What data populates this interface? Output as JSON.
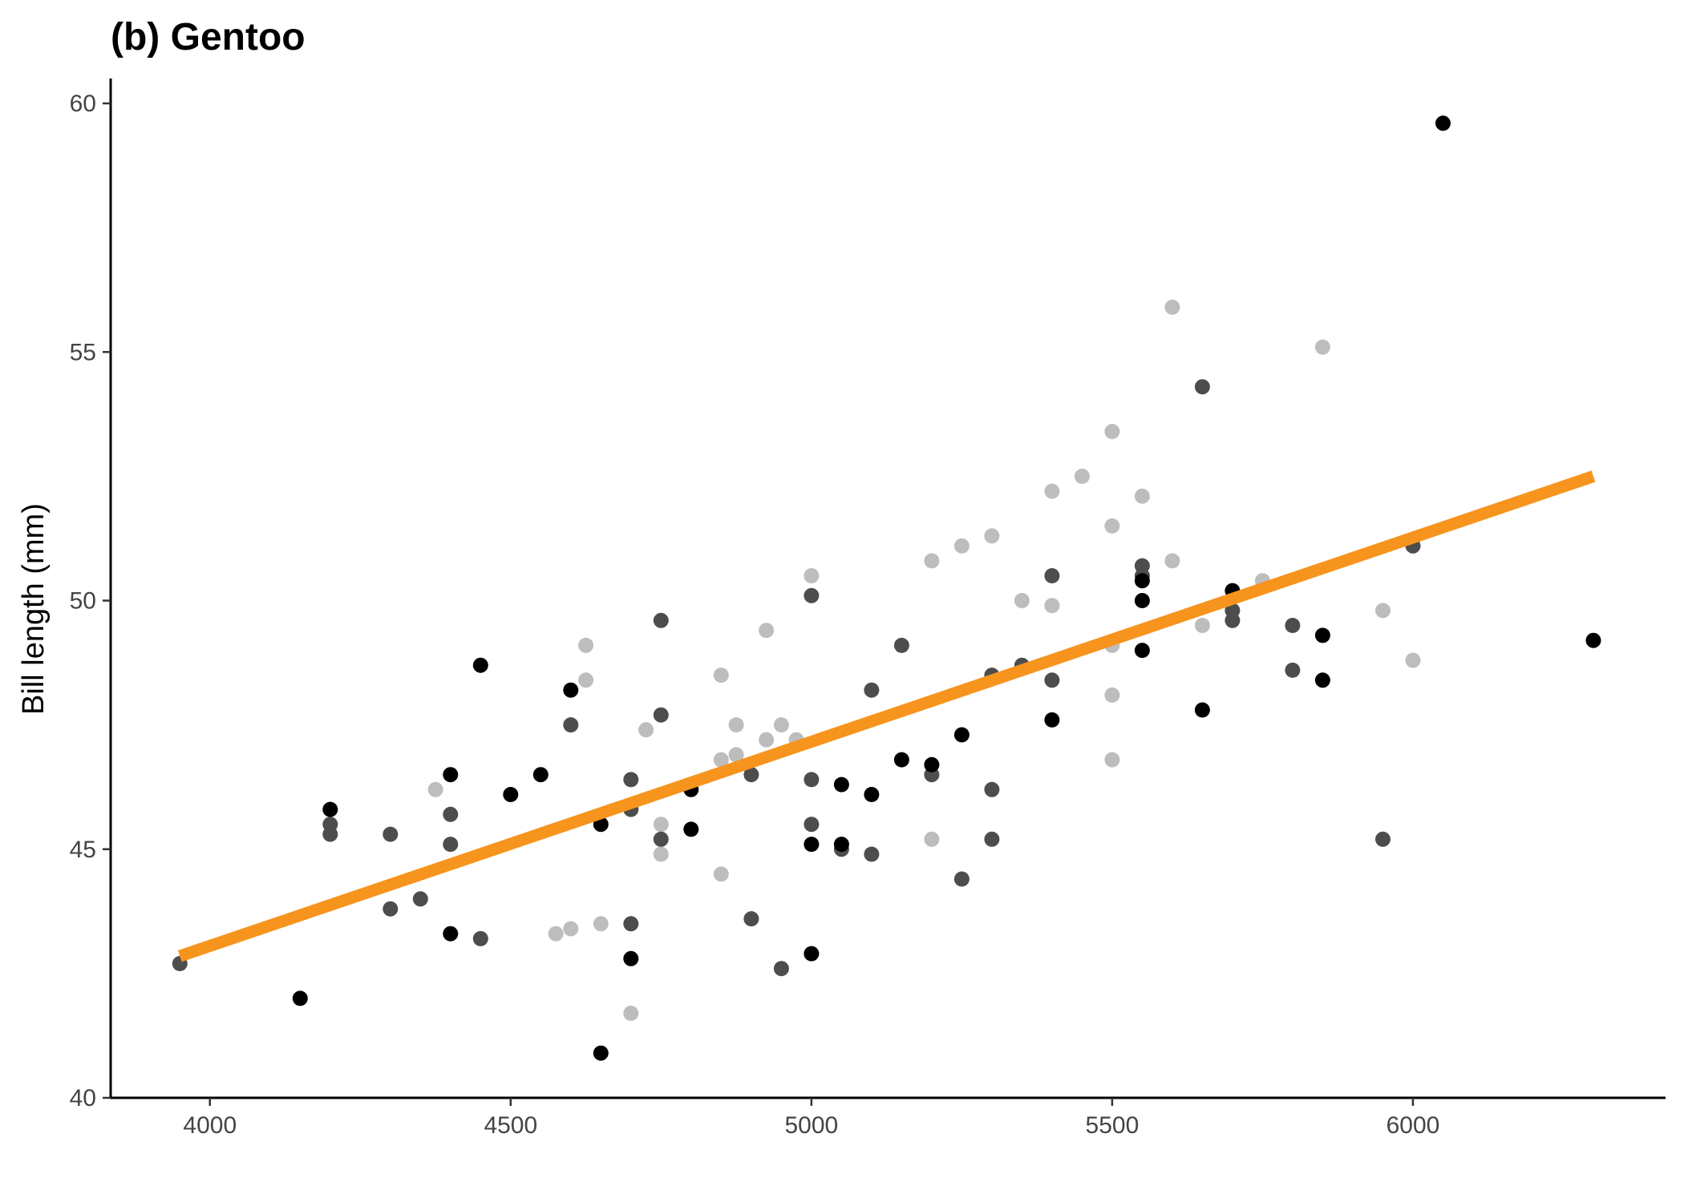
{
  "chart_data": {
    "type": "scatter",
    "title": "(b) Gentoo",
    "xlabel": "",
    "ylabel": "Bill length (mm)",
    "xlim": [
      3835,
      6420
    ],
    "ylim": [
      40,
      60.5
    ],
    "x_ticks": [
      4000,
      4500,
      5000,
      5500,
      6000
    ],
    "y_ticks": [
      40,
      45,
      50,
      55,
      60
    ],
    "x_tick_labels": [
      "4000",
      "4500",
      "5000",
      "5500",
      "6000"
    ],
    "y_tick_labels": [
      "40",
      "45",
      "50",
      "55",
      "60"
    ],
    "grid": false,
    "legend": "none",
    "colors": {
      "black": "#000000",
      "dark": "#4d4d4d",
      "light": "#bdbdbd",
      "fit": "#f7941d"
    },
    "fit_line": {
      "x": [
        3950,
        6300
      ],
      "y": [
        42.85,
        52.5
      ]
    },
    "series": [
      {
        "color": "light",
        "points": [
          [
            4375,
            46.2
          ],
          [
            4575,
            43.3
          ],
          [
            4600,
            43.4
          ],
          [
            4625,
            49.1
          ],
          [
            4625,
            48.4
          ],
          [
            4650,
            43.5
          ],
          [
            4700,
            41.7
          ],
          [
            4725,
            47.4
          ],
          [
            4750,
            45.5
          ],
          [
            4750,
            44.9
          ],
          [
            4850,
            48.5
          ],
          [
            4850,
            46.8
          ],
          [
            4850,
            44.5
          ],
          [
            4875,
            47.5
          ],
          [
            4875,
            46.9
          ],
          [
            4925,
            49.4
          ],
          [
            4925,
            47.2
          ],
          [
            4950,
            47.5
          ],
          [
            4975,
            47.2
          ],
          [
            5000,
            50.5
          ],
          [
            5200,
            50.8
          ],
          [
            5200,
            45.2
          ],
          [
            5250,
            51.1
          ],
          [
            5300,
            51.3
          ],
          [
            5350,
            50.0
          ],
          [
            5400,
            52.2
          ],
          [
            5400,
            49.9
          ],
          [
            5450,
            52.5
          ],
          [
            5500,
            53.4
          ],
          [
            5500,
            51.5
          ],
          [
            5500,
            49.1
          ],
          [
            5500,
            48.1
          ],
          [
            5500,
            46.8
          ],
          [
            5550,
            52.1
          ],
          [
            5600,
            55.9
          ],
          [
            5600,
            50.8
          ],
          [
            5650,
            49.5
          ],
          [
            5750,
            50.4
          ],
          [
            5850,
            55.1
          ],
          [
            5950,
            49.8
          ],
          [
            6000,
            48.8
          ]
        ]
      },
      {
        "color": "dark",
        "points": [
          [
            3950,
            42.7
          ],
          [
            4200,
            45.5
          ],
          [
            4200,
            45.3
          ],
          [
            4300,
            45.3
          ],
          [
            4300,
            43.8
          ],
          [
            4350,
            44.0
          ],
          [
            4400,
            45.7
          ],
          [
            4400,
            45.1
          ],
          [
            4450,
            43.2
          ],
          [
            4600,
            47.5
          ],
          [
            4700,
            46.4
          ],
          [
            4700,
            45.8
          ],
          [
            4700,
            43.5
          ],
          [
            4750,
            49.6
          ],
          [
            4750,
            47.7
          ],
          [
            4750,
            45.2
          ],
          [
            4900,
            46.5
          ],
          [
            4900,
            43.6
          ],
          [
            4950,
            42.6
          ],
          [
            5000,
            50.1
          ],
          [
            5000,
            46.4
          ],
          [
            5000,
            45.5
          ],
          [
            5050,
            45.0
          ],
          [
            5100,
            48.2
          ],
          [
            5100,
            44.9
          ],
          [
            5150,
            49.1
          ],
          [
            5200,
            46.5
          ],
          [
            5250,
            44.4
          ],
          [
            5300,
            48.5
          ],
          [
            5300,
            46.2
          ],
          [
            5300,
            45.2
          ],
          [
            5350,
            48.7
          ],
          [
            5400,
            50.5
          ],
          [
            5400,
            48.4
          ],
          [
            5550,
            50.7
          ],
          [
            5550,
            50.5
          ],
          [
            5650,
            54.3
          ],
          [
            5700,
            49.6
          ],
          [
            5700,
            49.8
          ],
          [
            5800,
            49.5
          ],
          [
            5800,
            48.6
          ],
          [
            5950,
            45.2
          ],
          [
            6000,
            51.1
          ]
        ]
      },
      {
        "color": "black",
        "points": [
          [
            4150,
            42.0
          ],
          [
            4200,
            45.8
          ],
          [
            4400,
            46.5
          ],
          [
            4400,
            43.3
          ],
          [
            4450,
            48.7
          ],
          [
            4500,
            46.1
          ],
          [
            4550,
            46.5
          ],
          [
            4600,
            48.2
          ],
          [
            4650,
            45.5
          ],
          [
            4650,
            40.9
          ],
          [
            4700,
            42.8
          ],
          [
            4800,
            46.2
          ],
          [
            4800,
            45.4
          ],
          [
            5000,
            45.1
          ],
          [
            5000,
            42.9
          ],
          [
            5050,
            46.3
          ],
          [
            5050,
            45.1
          ],
          [
            5100,
            46.1
          ],
          [
            5150,
            46.8
          ],
          [
            5200,
            46.7
          ],
          [
            5250,
            47.3
          ],
          [
            5400,
            47.6
          ],
          [
            5550,
            50.0
          ],
          [
            5550,
            50.4
          ],
          [
            5550,
            49.0
          ],
          [
            5650,
            47.8
          ],
          [
            5700,
            50.2
          ],
          [
            5850,
            49.3
          ],
          [
            5850,
            48.4
          ],
          [
            6050,
            59.6
          ],
          [
            6300,
            49.2
          ]
        ]
      }
    ]
  }
}
